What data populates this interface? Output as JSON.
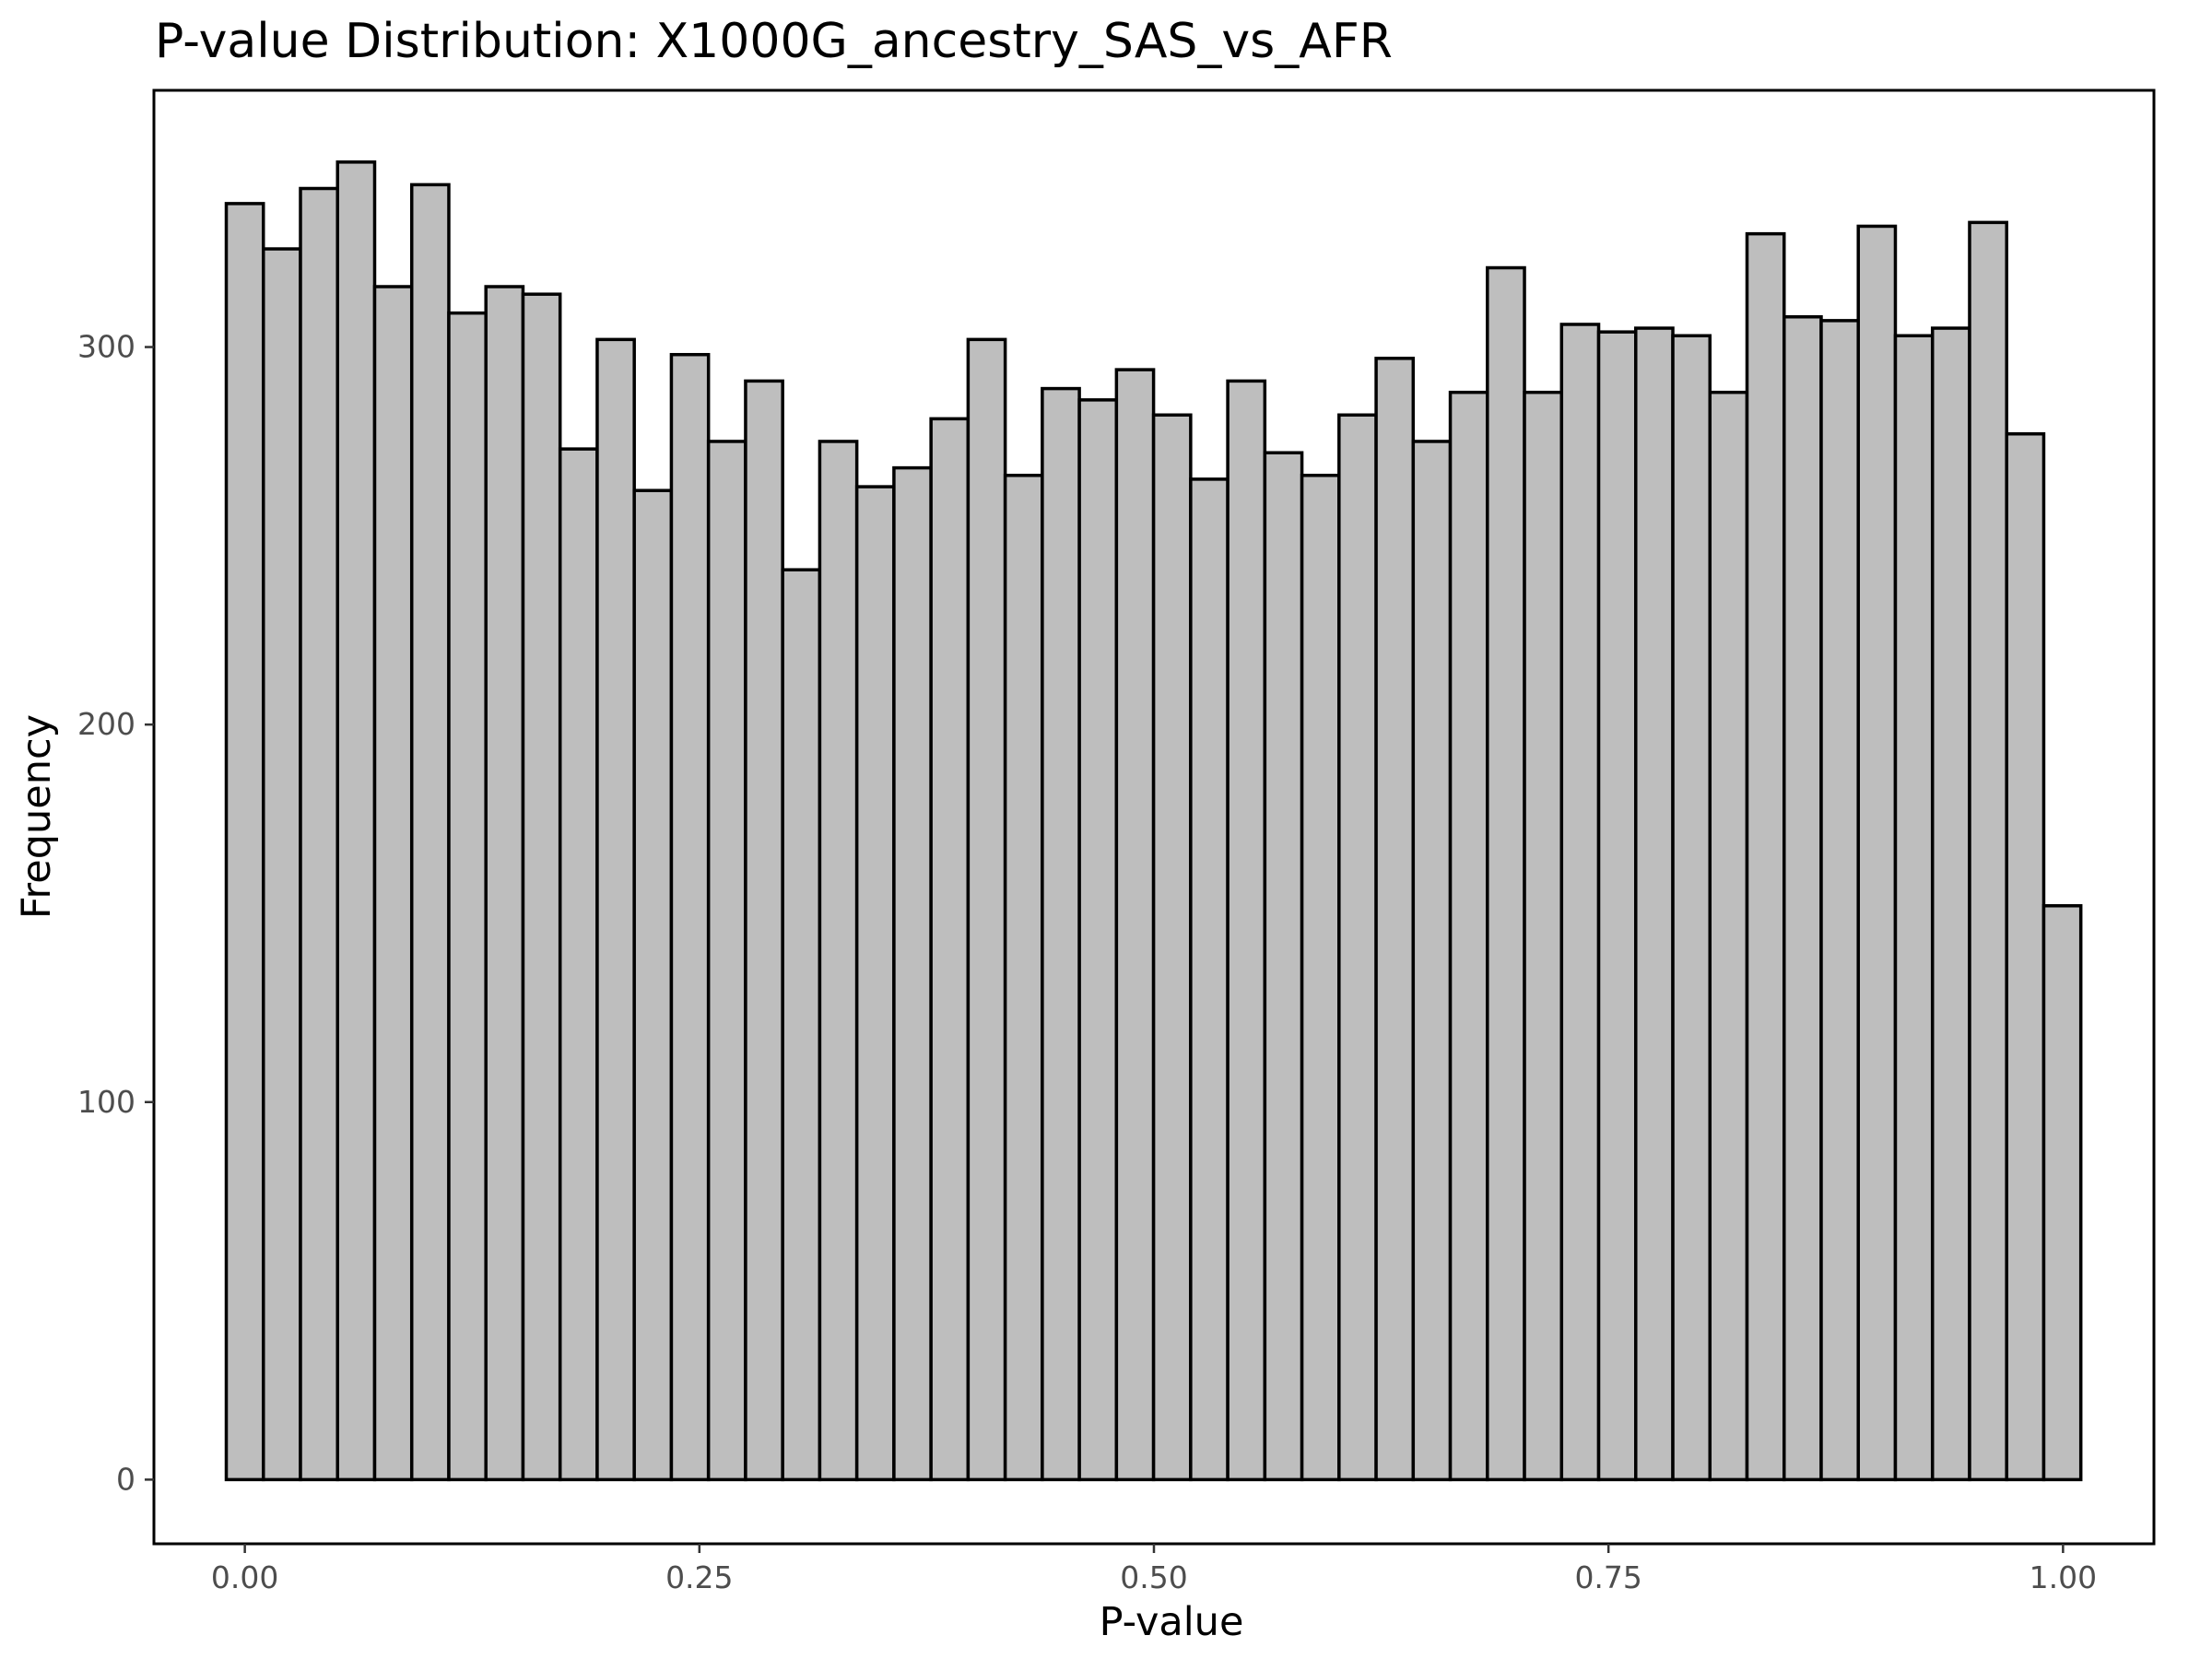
{
  "chart_data": {
    "type": "bar",
    "title": "P-value Distribution: X1000G_ancestry_SAS_vs_AFR",
    "xlabel": "P-value",
    "ylabel": "Frequency",
    "x_ticks": [
      0.0,
      0.25,
      0.5,
      0.75,
      1.0
    ],
    "x_tick_labels": [
      "0.00",
      "0.25",
      "0.50",
      "0.75",
      "1.00"
    ],
    "y_ticks": [
      0,
      100,
      200,
      300
    ],
    "y_tick_labels": [
      "0",
      "100",
      "200",
      "300"
    ],
    "xlim": [
      -0.05,
      1.05
    ],
    "ylim": [
      -17,
      368
    ],
    "bin_width": 0.0204,
    "bin_start": -0.0102,
    "values": [
      338,
      326,
      342,
      349,
      316,
      343,
      309,
      316,
      314,
      273,
      302,
      262,
      298,
      275,
      291,
      241,
      275,
      263,
      268,
      281,
      302,
      266,
      289,
      286,
      294,
      282,
      265,
      291,
      272,
      266,
      282,
      297,
      275,
      288,
      321,
      288,
      306,
      304,
      305,
      303,
      288,
      330,
      308,
      307,
      332,
      303,
      305,
      333,
      277,
      152
    ],
    "bar_color": "#bebebe",
    "edge_color": "#000000",
    "grid": false,
    "legend": "none"
  }
}
